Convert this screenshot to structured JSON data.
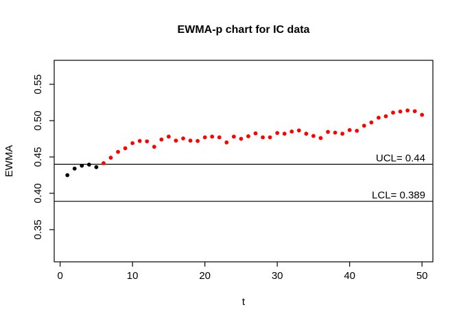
{
  "chart_data": {
    "type": "scatter",
    "title": "EWMA-p chart for IC data",
    "xlabel": "t",
    "ylabel": "EWMA",
    "xlim": [
      -0.82,
      51.5
    ],
    "ylim": [
      0.3057,
      0.583
    ],
    "grid": "off",
    "legend": "none",
    "x_ticks": {
      "values": [
        0,
        10,
        20,
        30,
        40,
        50
      ],
      "labels": [
        "0",
        "10",
        "20",
        "30",
        "40",
        "50"
      ]
    },
    "y_ticks": {
      "values": [
        0.35,
        0.4,
        0.45,
        0.5,
        0.55
      ],
      "labels": [
        "0.35",
        "0.40",
        "0.45",
        "0.50",
        "0.55"
      ]
    },
    "control_limits": {
      "ucl": {
        "value": 0.44,
        "label": "UCL= 0.44"
      },
      "lcl": {
        "value": 0.389,
        "label": "LCL= 0.389"
      },
      "line_color": "#000000"
    },
    "series": [
      {
        "name": "in-control-points",
        "color": "#000000",
        "marker": "filled-circle",
        "t": [
          1,
          2,
          3,
          4,
          5
        ],
        "ewma": [
          0.425,
          0.434,
          0.438,
          0.4395,
          0.436
        ]
      },
      {
        "name": "out-of-control-points",
        "color": "#FF0000",
        "marker": "filled-circle",
        "t": [
          6,
          7,
          8,
          9,
          10,
          11,
          12,
          13,
          14,
          15,
          16,
          17,
          18,
          19,
          20,
          21,
          22,
          23,
          24,
          25,
          26,
          27,
          28,
          29,
          30,
          31,
          32,
          33,
          34,
          35,
          36,
          37,
          38,
          39,
          40,
          41,
          42,
          43,
          44,
          45,
          46,
          47,
          48,
          49,
          50
        ],
        "ewma": [
          0.4415,
          0.449,
          0.457,
          0.462,
          0.469,
          0.472,
          0.4715,
          0.464,
          0.474,
          0.478,
          0.4725,
          0.4755,
          0.4725,
          0.472,
          0.477,
          0.478,
          0.477,
          0.47,
          0.478,
          0.475,
          0.4785,
          0.4825,
          0.477,
          0.477,
          0.483,
          0.482,
          0.485,
          0.4865,
          0.482,
          0.479,
          0.476,
          0.4845,
          0.4835,
          0.482,
          0.487,
          0.486,
          0.493,
          0.4975,
          0.504,
          0.506,
          0.511,
          0.5125,
          0.514,
          0.513,
          0.508
        ]
      }
    ]
  }
}
